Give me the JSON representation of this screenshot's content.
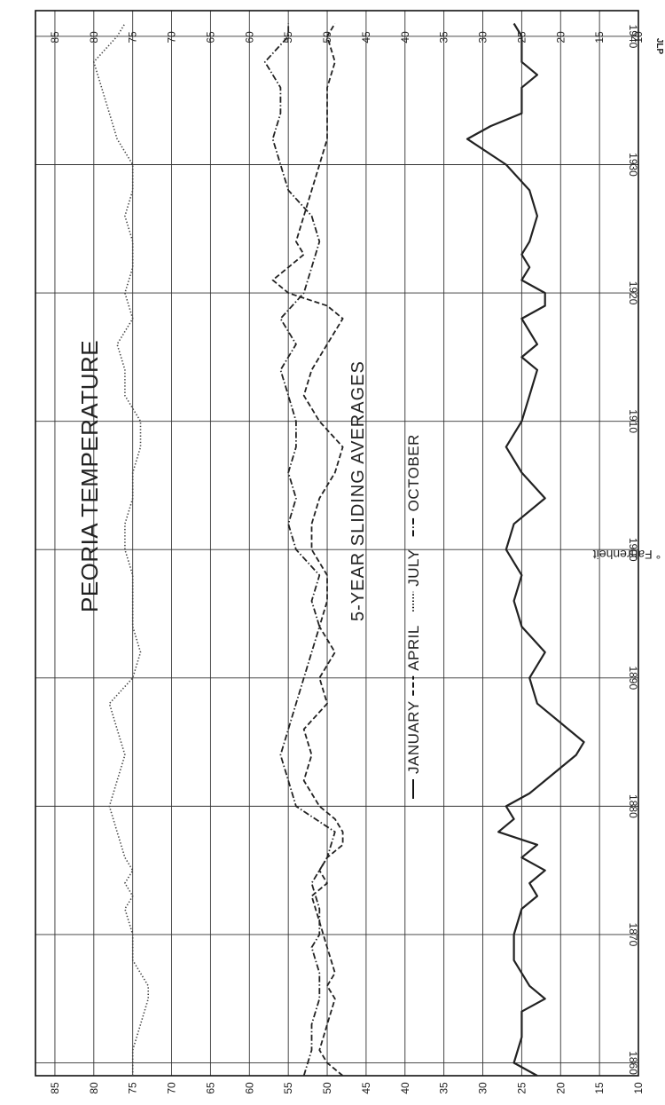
{
  "chart_data": {
    "type": "line",
    "title": "PEORIA TEMPERATURE",
    "subtitle": "5-YEAR SLIDING AVERAGES",
    "ylabel": "° Fahrenheit",
    "credit": "JLP",
    "x_ticks": [
      1860,
      1870,
      1880,
      1890,
      1900,
      1910,
      1920,
      1930,
      1940
    ],
    "y_ticks": [
      10,
      15,
      20,
      25,
      30,
      35,
      40,
      45,
      50,
      55,
      60,
      65,
      70,
      75,
      80,
      85
    ],
    "xlim": [
      1859,
      1942
    ],
    "ylim": [
      10,
      87.5
    ],
    "grid": true,
    "legend_position": "center",
    "series": [
      {
        "name": "JANUARY",
        "style": "solid",
        "x": [
          1859,
          1860,
          1862,
          1864,
          1865,
          1866,
          1868,
          1870,
          1872,
          1873,
          1874,
          1875,
          1876,
          1877,
          1878,
          1879,
          1880,
          1881,
          1882,
          1883,
          1884,
          1885,
          1886,
          1888,
          1890,
          1892,
          1894,
          1896,
          1898,
          1900,
          1902,
          1904,
          1906,
          1908,
          1909,
          1910,
          1912,
          1914,
          1915,
          1916,
          1918,
          1919,
          1920,
          1921,
          1922,
          1923,
          1924,
          1926,
          1928,
          1930,
          1932,
          1933,
          1934,
          1936,
          1937,
          1938,
          1940,
          1941
        ],
        "y": [
          23,
          26,
          25,
          25,
          22,
          24,
          26,
          26,
          25,
          23,
          24,
          22,
          25,
          23,
          28,
          26,
          27,
          24,
          22,
          20,
          18,
          17,
          19,
          23,
          24,
          22,
          25,
          26,
          25,
          27,
          26,
          22,
          25,
          27,
          26,
          25,
          24,
          23,
          25,
          23,
          25,
          22,
          22,
          25,
          24,
          25,
          24,
          23,
          24,
          27,
          32,
          29,
          25,
          25,
          23,
          25,
          25,
          26
        ],
        "color": "#222222"
      },
      {
        "name": "APRIL",
        "style": "dashed",
        "x": [
          1859,
          1860,
          1861,
          1863,
          1865,
          1866,
          1867,
          1869,
          1871,
          1873,
          1874,
          1875,
          1876,
          1877,
          1878,
          1879,
          1880,
          1882,
          1884,
          1886,
          1888,
          1890,
          1892,
          1894,
          1896,
          1898,
          1900,
          1902,
          1904,
          1906,
          1908,
          1910,
          1912,
          1914,
          1916,
          1918,
          1919,
          1920,
          1921,
          1922,
          1923,
          1924,
          1926,
          1928,
          1930,
          1932,
          1934,
          1936,
          1938,
          1940,
          1941
        ],
        "y": [
          48,
          50,
          51,
          50,
          49,
          50,
          49,
          50,
          51,
          52,
          50,
          51,
          50,
          48,
          48,
          49,
          51,
          53,
          52,
          53,
          50,
          51,
          49,
          51,
          50,
          50,
          52,
          52,
          51,
          49,
          48,
          51,
          53,
          52,
          50,
          48,
          50,
          55,
          57,
          55,
          53,
          54,
          53,
          52,
          51,
          50,
          50,
          50,
          49,
          50,
          49
        ],
        "color": "#222222"
      },
      {
        "name": "JULY",
        "style": "dotted",
        "x": [
          1859,
          1861,
          1863,
          1865,
          1866,
          1868,
          1870,
          1872,
          1873,
          1874,
          1875,
          1876,
          1878,
          1880,
          1882,
          1884,
          1886,
          1888,
          1890,
          1892,
          1894,
          1896,
          1898,
          1900,
          1902,
          1904,
          1906,
          1908,
          1910,
          1912,
          1914,
          1916,
          1918,
          1920,
          1922,
          1924,
          1926,
          1928,
          1930,
          1932,
          1934,
          1936,
          1938,
          1940,
          1941
        ],
        "y": [
          75,
          75,
          74,
          73,
          73,
          75,
          75,
          76,
          75,
          76,
          75,
          76,
          77,
          78,
          77,
          76,
          77,
          78,
          75,
          74,
          75,
          75,
          75,
          76,
          76,
          75,
          75,
          74,
          74,
          76,
          76,
          77,
          75,
          76,
          75,
          75,
          76,
          75,
          75,
          77,
          78,
          79,
          80,
          77,
          76
        ],
        "color": "#444444"
      },
      {
        "name": "OCTOBER",
        "style": "dashdot",
        "x": [
          1859,
          1861,
          1863,
          1865,
          1867,
          1869,
          1870,
          1872,
          1874,
          1876,
          1878,
          1880,
          1882,
          1884,
          1886,
          1888,
          1890,
          1892,
          1894,
          1896,
          1898,
          1900,
          1902,
          1904,
          1906,
          1908,
          1910,
          1912,
          1914,
          1916,
          1918,
          1920,
          1922,
          1924,
          1926,
          1928,
          1930,
          1932,
          1934,
          1936,
          1938,
          1940,
          1941
        ],
        "y": [
          53,
          52,
          52,
          51,
          51,
          52,
          51,
          51,
          52,
          50,
          49,
          54,
          55,
          56,
          55,
          54,
          53,
          52,
          51,
          52,
          51,
          54,
          55,
          54,
          55,
          54,
          54,
          55,
          56,
          54,
          56,
          53,
          52,
          51,
          52,
          55,
          56,
          57,
          56,
          56,
          58,
          55,
          55
        ],
        "color": "#222222"
      }
    ]
  }
}
